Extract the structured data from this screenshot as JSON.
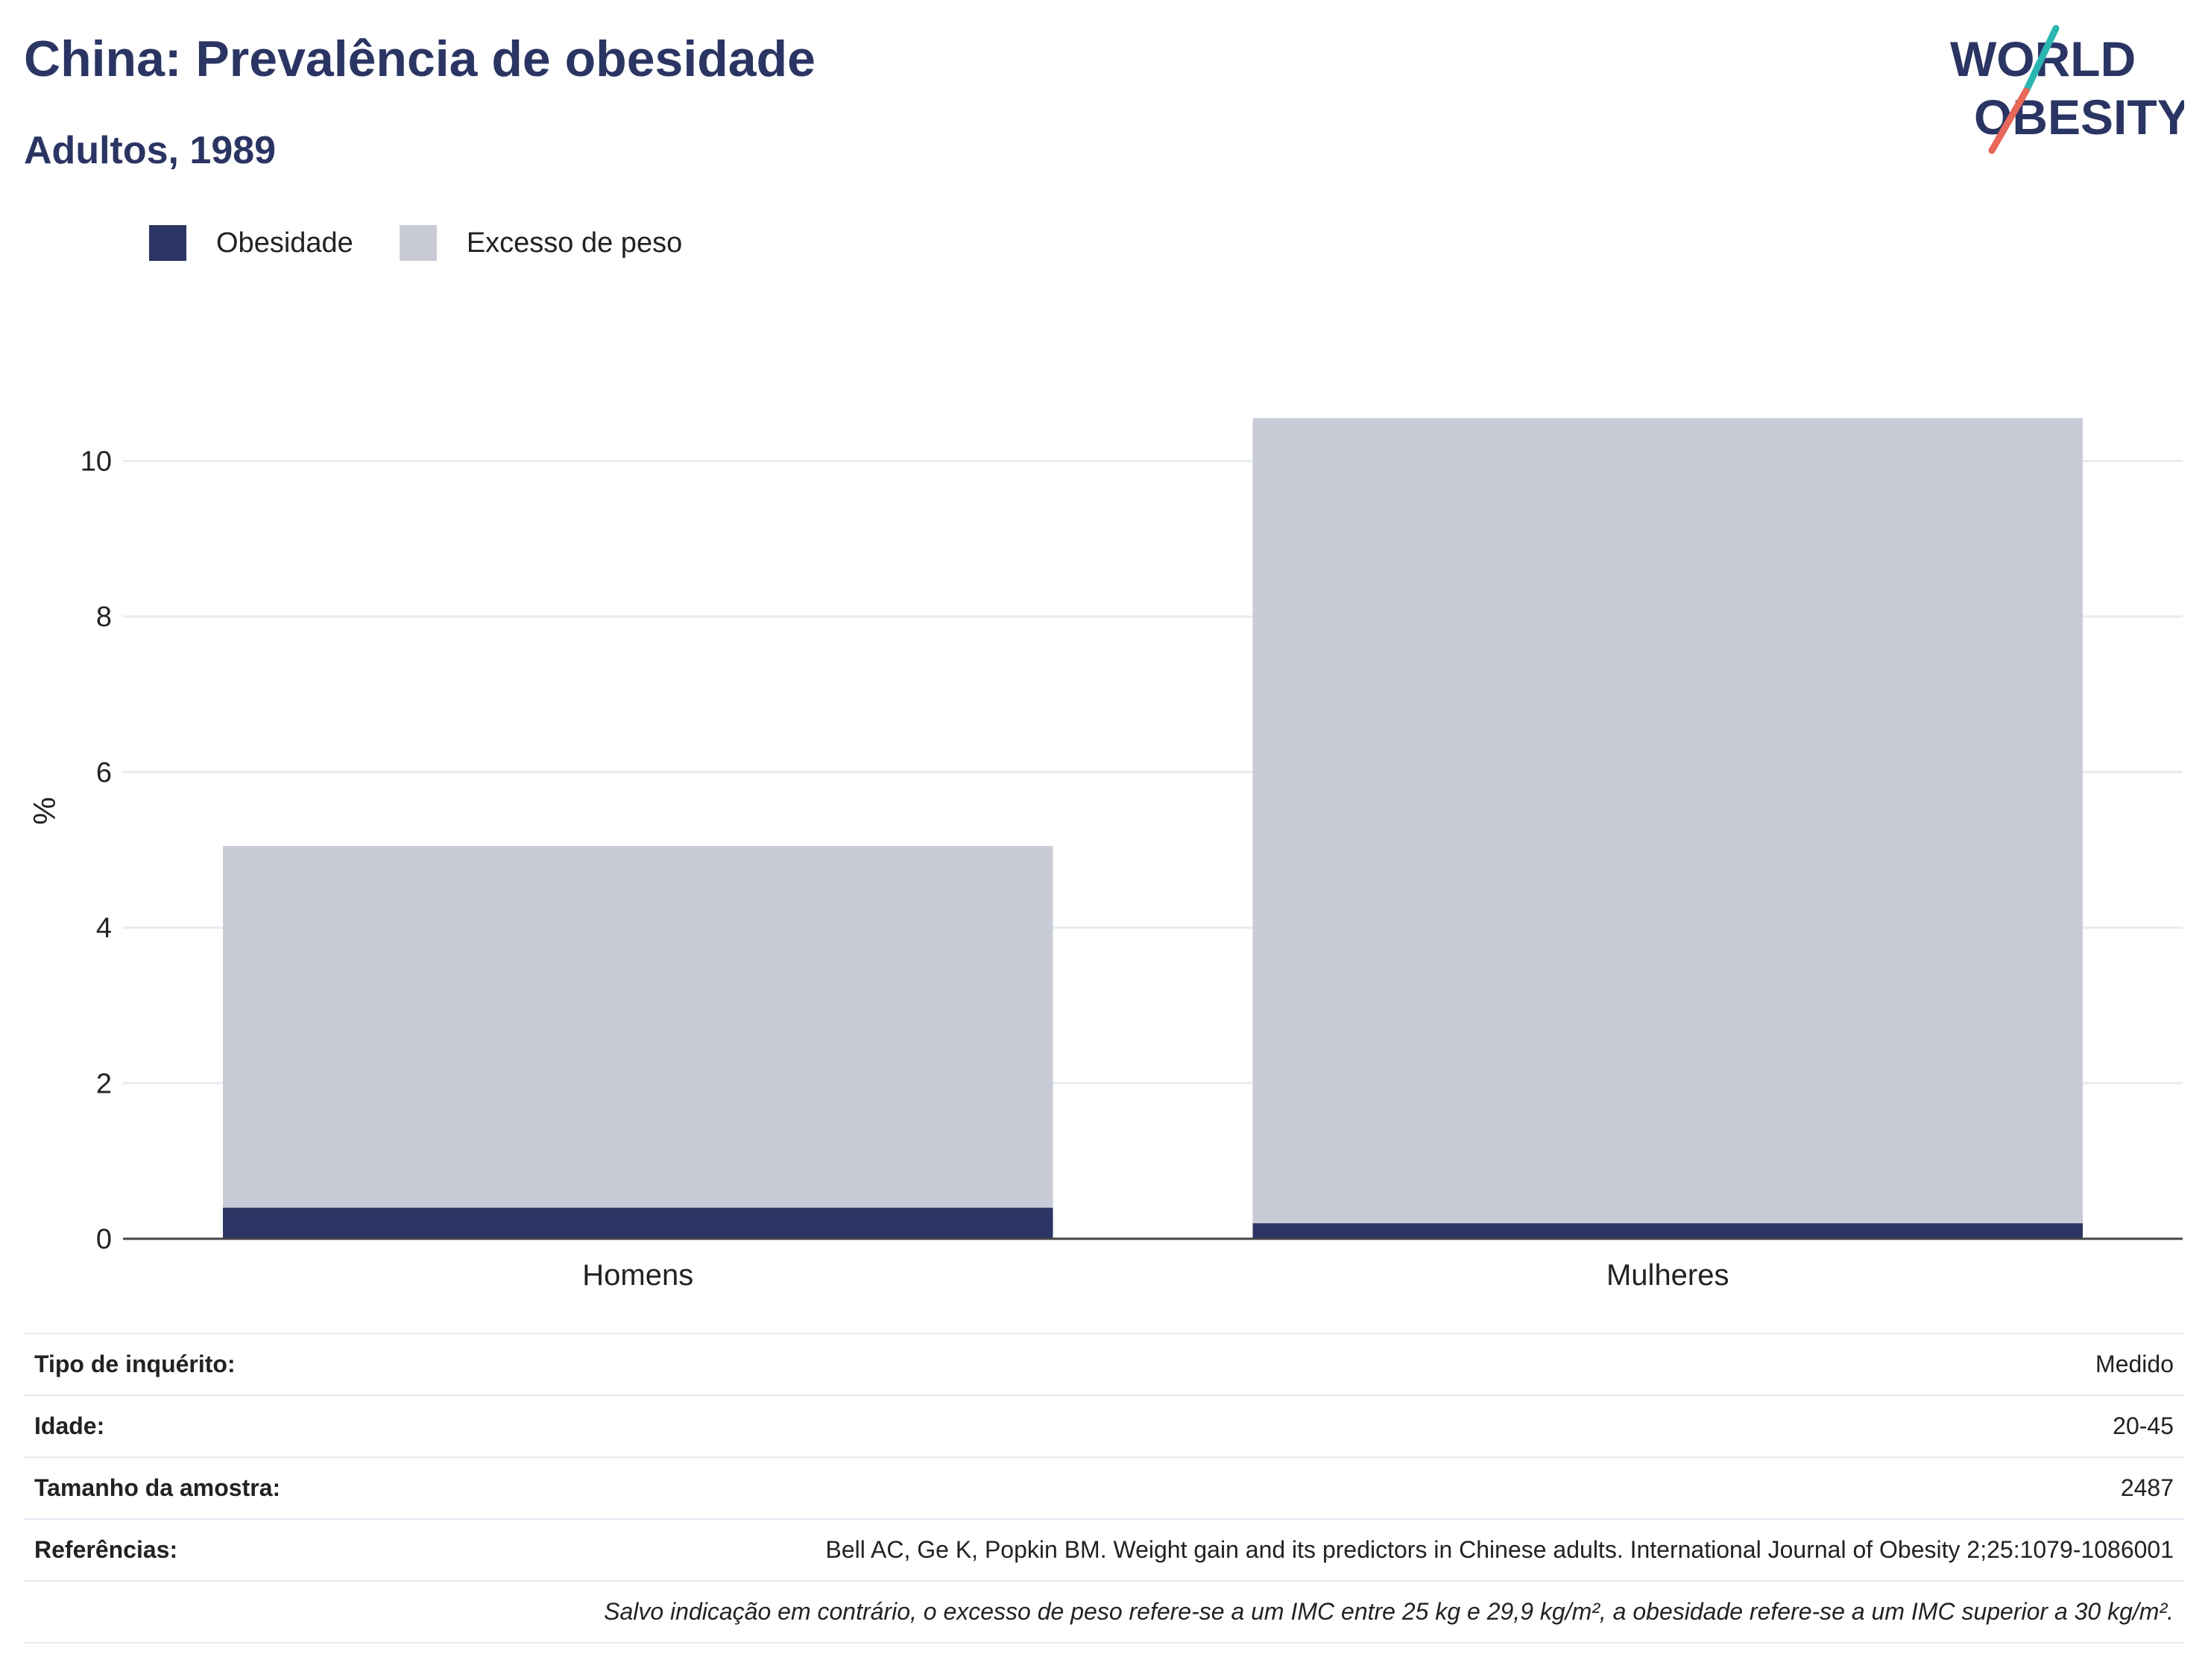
{
  "header": {
    "title": "China: Prevalência de obesidade",
    "subtitle": "Adultos, 1989"
  },
  "logo": {
    "line1": "WORLD",
    "line2": "OBESITY",
    "colors": {
      "text": "#2a3563",
      "slash_top": "#2ab5b1",
      "slash_bottom": "#e8685a"
    }
  },
  "legend": [
    {
      "label": "Obesidade",
      "color": "#2a3563"
    },
    {
      "label": "Excesso de peso",
      "color": "#c9ccd7"
    }
  ],
  "chart_data": {
    "type": "bar",
    "stacked": true,
    "categories": [
      "Homens",
      "Mulheres"
    ],
    "series": [
      {
        "name": "Obesidade",
        "color": "#2a3563",
        "values": [
          0.4,
          0.2
        ]
      },
      {
        "name": "Excesso de peso",
        "color": "#c9ccd7",
        "values": [
          4.65,
          10.35
        ]
      }
    ],
    "ylabel": "%",
    "ylim": [
      0,
      10.56
    ],
    "yticks": [
      0,
      2,
      4,
      6,
      8,
      10
    ],
    "grid": true,
    "legend_position": "top-left"
  },
  "info": {
    "rows": [
      {
        "label": "Tipo de inquérito:",
        "value": "Medido"
      },
      {
        "label": "Idade:",
        "value": "20-45"
      },
      {
        "label": "Tamanho da amostra:",
        "value": "2487"
      },
      {
        "label": "Referências:",
        "value": "Bell AC, Ge K, Popkin BM. Weight gain and its predictors in Chinese adults. International Journal of Obesity 2;25:1079-1086001"
      }
    ],
    "note": "Salvo indicação em contrário, o excesso de peso refere-se a um IMC entre 25 kg e 29,9 kg/m², a obesidade refere-se a um IMC superior a 30 kg/m²."
  }
}
